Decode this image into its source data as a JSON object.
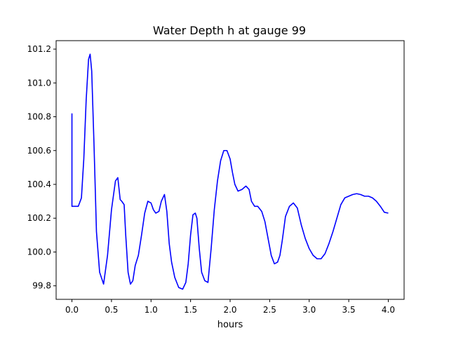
{
  "chart_data": {
    "type": "line",
    "title": "Water Depth h at gauge 99",
    "xlabel": "hours",
    "ylabel": "",
    "xlim": [
      -0.2,
      4.2
    ],
    "ylim": [
      99.72,
      101.25
    ],
    "xticks": [
      0.0,
      0.5,
      1.0,
      1.5,
      2.0,
      2.5,
      3.0,
      3.5,
      4.0
    ],
    "xtick_labels": [
      "0.0",
      "0.5",
      "1.0",
      "1.5",
      "2.0",
      "2.5",
      "3.0",
      "3.5",
      "4.0"
    ],
    "yticks": [
      99.8,
      100.0,
      100.2,
      100.4,
      100.6,
      100.8,
      101.0,
      101.2
    ],
    "ytick_labels": [
      "99.8",
      "100.0",
      "100.2",
      "100.4",
      "100.6",
      "100.8",
      "101.0",
      "101.2"
    ],
    "grid": false,
    "series": [
      {
        "color": "#0000ff",
        "x": [
          0.0,
          0.0,
          0.0,
          0.04,
          0.08,
          0.12,
          0.15,
          0.18,
          0.21,
          0.23,
          0.25,
          0.28,
          0.31,
          0.35,
          0.4,
          0.45,
          0.5,
          0.55,
          0.58,
          0.61,
          0.63,
          0.66,
          0.68,
          0.71,
          0.74,
          0.77,
          0.8,
          0.84,
          0.88,
          0.92,
          0.96,
          1.0,
          1.03,
          1.06,
          1.1,
          1.13,
          1.17,
          1.2,
          1.23,
          1.26,
          1.3,
          1.35,
          1.4,
          1.44,
          1.47,
          1.5,
          1.53,
          1.56,
          1.58,
          1.61,
          1.64,
          1.68,
          1.72,
          1.76,
          1.8,
          1.84,
          1.88,
          1.92,
          1.96,
          2.0,
          2.03,
          2.06,
          2.1,
          2.15,
          2.2,
          2.24,
          2.27,
          2.31,
          2.35,
          2.4,
          2.44,
          2.48,
          2.52,
          2.56,
          2.6,
          2.63,
          2.66,
          2.7,
          2.75,
          2.8,
          2.85,
          2.9,
          2.95,
          3.0,
          3.05,
          3.1,
          3.15,
          3.2,
          3.25,
          3.3,
          3.35,
          3.4,
          3.45,
          3.5,
          3.55,
          3.6,
          3.65,
          3.7,
          3.75,
          3.8,
          3.85,
          3.9,
          3.95,
          4.0
        ],
        "y": [
          100.82,
          100.28,
          100.27,
          100.27,
          100.27,
          100.32,
          100.55,
          100.9,
          101.14,
          101.17,
          101.07,
          100.62,
          100.12,
          99.88,
          99.81,
          99.98,
          100.25,
          100.42,
          100.44,
          100.31,
          100.3,
          100.28,
          100.1,
          99.88,
          99.81,
          99.83,
          99.92,
          99.98,
          100.1,
          100.23,
          100.3,
          100.29,
          100.25,
          100.23,
          100.24,
          100.3,
          100.34,
          100.24,
          100.05,
          99.94,
          99.85,
          99.79,
          99.78,
          99.82,
          99.93,
          100.1,
          100.22,
          100.23,
          100.2,
          100.02,
          99.88,
          99.83,
          99.82,
          100.02,
          100.25,
          100.42,
          100.54,
          100.6,
          100.6,
          100.55,
          100.47,
          100.4,
          100.36,
          100.37,
          100.39,
          100.37,
          100.3,
          100.27,
          100.27,
          100.24,
          100.18,
          100.08,
          99.98,
          99.93,
          99.94,
          99.98,
          100.07,
          100.21,
          100.27,
          100.29,
          100.26,
          100.16,
          100.08,
          100.02,
          99.98,
          99.96,
          99.96,
          99.99,
          100.05,
          100.12,
          100.2,
          100.28,
          100.32,
          100.33,
          100.34,
          100.345,
          100.34,
          100.33,
          100.33,
          100.32,
          100.3,
          100.27,
          100.235,
          100.23
        ]
      }
    ]
  }
}
